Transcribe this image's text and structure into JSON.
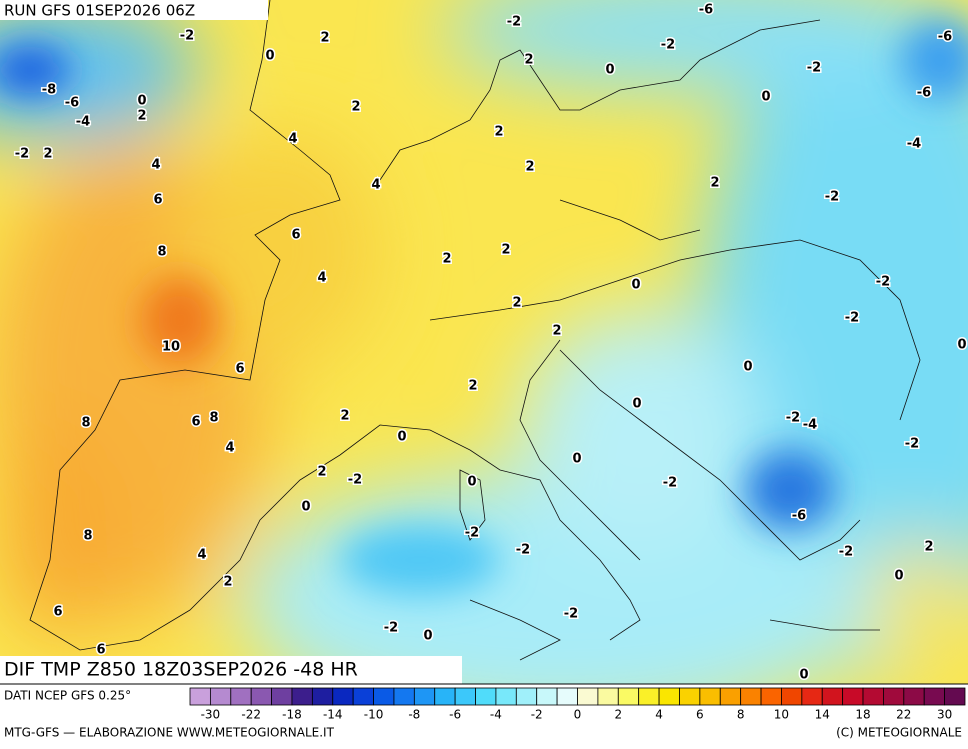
{
  "header": {
    "run": "RUN GFS 01SEP2026 06Z"
  },
  "map": {
    "field": "DIF TMP Z850 18Z03SEP2026 -48 HR",
    "contour_labels": [
      -2,
      0,
      2,
      -2,
      -6,
      -6,
      -2,
      2,
      0,
      -2,
      -6,
      0,
      -8,
      -6,
      0,
      2,
      -4,
      2,
      4,
      2,
      -4,
      -2,
      2,
      4,
      4,
      2,
      2,
      6,
      -2,
      6,
      8,
      2,
      2,
      4,
      -2,
      0,
      2,
      -2,
      10,
      2,
      0,
      6,
      0,
      2,
      8,
      6,
      8,
      2,
      0,
      -2,
      -4,
      4,
      0,
      -2,
      0,
      2,
      -2,
      0,
      -2,
      0,
      -6,
      8,
      -2,
      -2,
      -2,
      2,
      4,
      2,
      0,
      6,
      -2,
      -2,
      0,
      6,
      0
    ]
  },
  "footer": {
    "source": "DATI NCEP GFS 0.25°",
    "credit": "MTG-GFS — ELABORAZIONE WWW.METEOGIORNALE.IT",
    "copyright": "(C) METEOGIORNALE"
  },
  "legend": {
    "colors": [
      "#c9a0dc",
      "#b58ad0",
      "#a070c0",
      "#8a58b0",
      "#6e3fa0",
      "#3c1e8c",
      "#1e1ea0",
      "#0a28c0",
      "#0a40d8",
      "#0a5ae6",
      "#1478f0",
      "#1e96f5",
      "#28b4f8",
      "#3cc8fa",
      "#50dcfa",
      "#78e8fa",
      "#a0f0fa",
      "#c8f8fa",
      "#e6fcfc",
      "#fafad2",
      "#fafaa0",
      "#fafa64",
      "#faf028",
      "#fae600",
      "#fad200",
      "#fabe00",
      "#faa000",
      "#fa8200",
      "#fa6400",
      "#f04600",
      "#e62814",
      "#d2141e",
      "#c80a28",
      "#b40a32",
      "#a00a3c",
      "#8c0a46",
      "#780a50",
      "#640a50"
    ],
    "ticks": [
      -30,
      -22,
      -18,
      -14,
      -10,
      -8,
      -6,
      -4,
      -2,
      0,
      2,
      4,
      6,
      8,
      10,
      14,
      18,
      22,
      30
    ]
  }
}
